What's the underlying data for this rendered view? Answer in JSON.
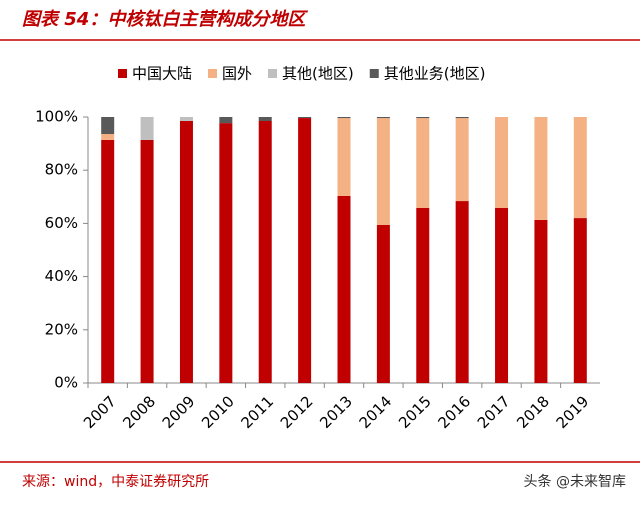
{
  "chart_data": {
    "type": "stacked-bar",
    "title": "图表 54：中核钛白主营构成分地区",
    "categories": [
      "2007",
      "2008",
      "2009",
      "2010",
      "2011",
      "2012",
      "2013",
      "2014",
      "2015",
      "2016",
      "2017",
      "2018",
      "2019"
    ],
    "series": [
      {
        "name": "中国大陆",
        "color": "#c00000",
        "values": [
          91.4,
          91.4,
          98.5,
          97.7,
          98.5,
          99.6,
          70.3,
          59.4,
          65.8,
          68.4,
          65.8,
          61.3,
          62
        ]
      },
      {
        "name": "国外",
        "color": "#f4b183",
        "values": [
          2.2,
          0,
          0,
          0,
          0,
          0,
          29.3,
          40.2,
          33.8,
          31.2,
          34.2,
          38.7,
          38
        ]
      },
      {
        "name": "其他(地区)",
        "color": "#bfbfbf",
        "values": [
          0,
          8.6,
          1.5,
          0,
          0,
          0,
          0,
          0,
          0,
          0,
          0,
          0,
          0
        ]
      },
      {
        "name": "其他业务(地区)",
        "color": "#595959",
        "values": [
          6.4,
          0,
          0,
          2.3,
          1.5,
          0.4,
          0.4,
          0.4,
          0.4,
          0.4,
          0,
          0,
          0
        ]
      }
    ],
    "ylim": [
      0,
      100
    ],
    "yticks": [
      {
        "value": 0,
        "label": "0%"
      },
      {
        "value": 20,
        "label": "20%"
      },
      {
        "value": 40,
        "label": "40%"
      },
      {
        "value": 60,
        "label": "60%"
      },
      {
        "value": 80,
        "label": "80%"
      },
      {
        "value": 100,
        "label": "100%"
      }
    ],
    "grid": false
  },
  "source": "来源：wind，中泰证券研究所",
  "watermark": "头条 @未来智库"
}
